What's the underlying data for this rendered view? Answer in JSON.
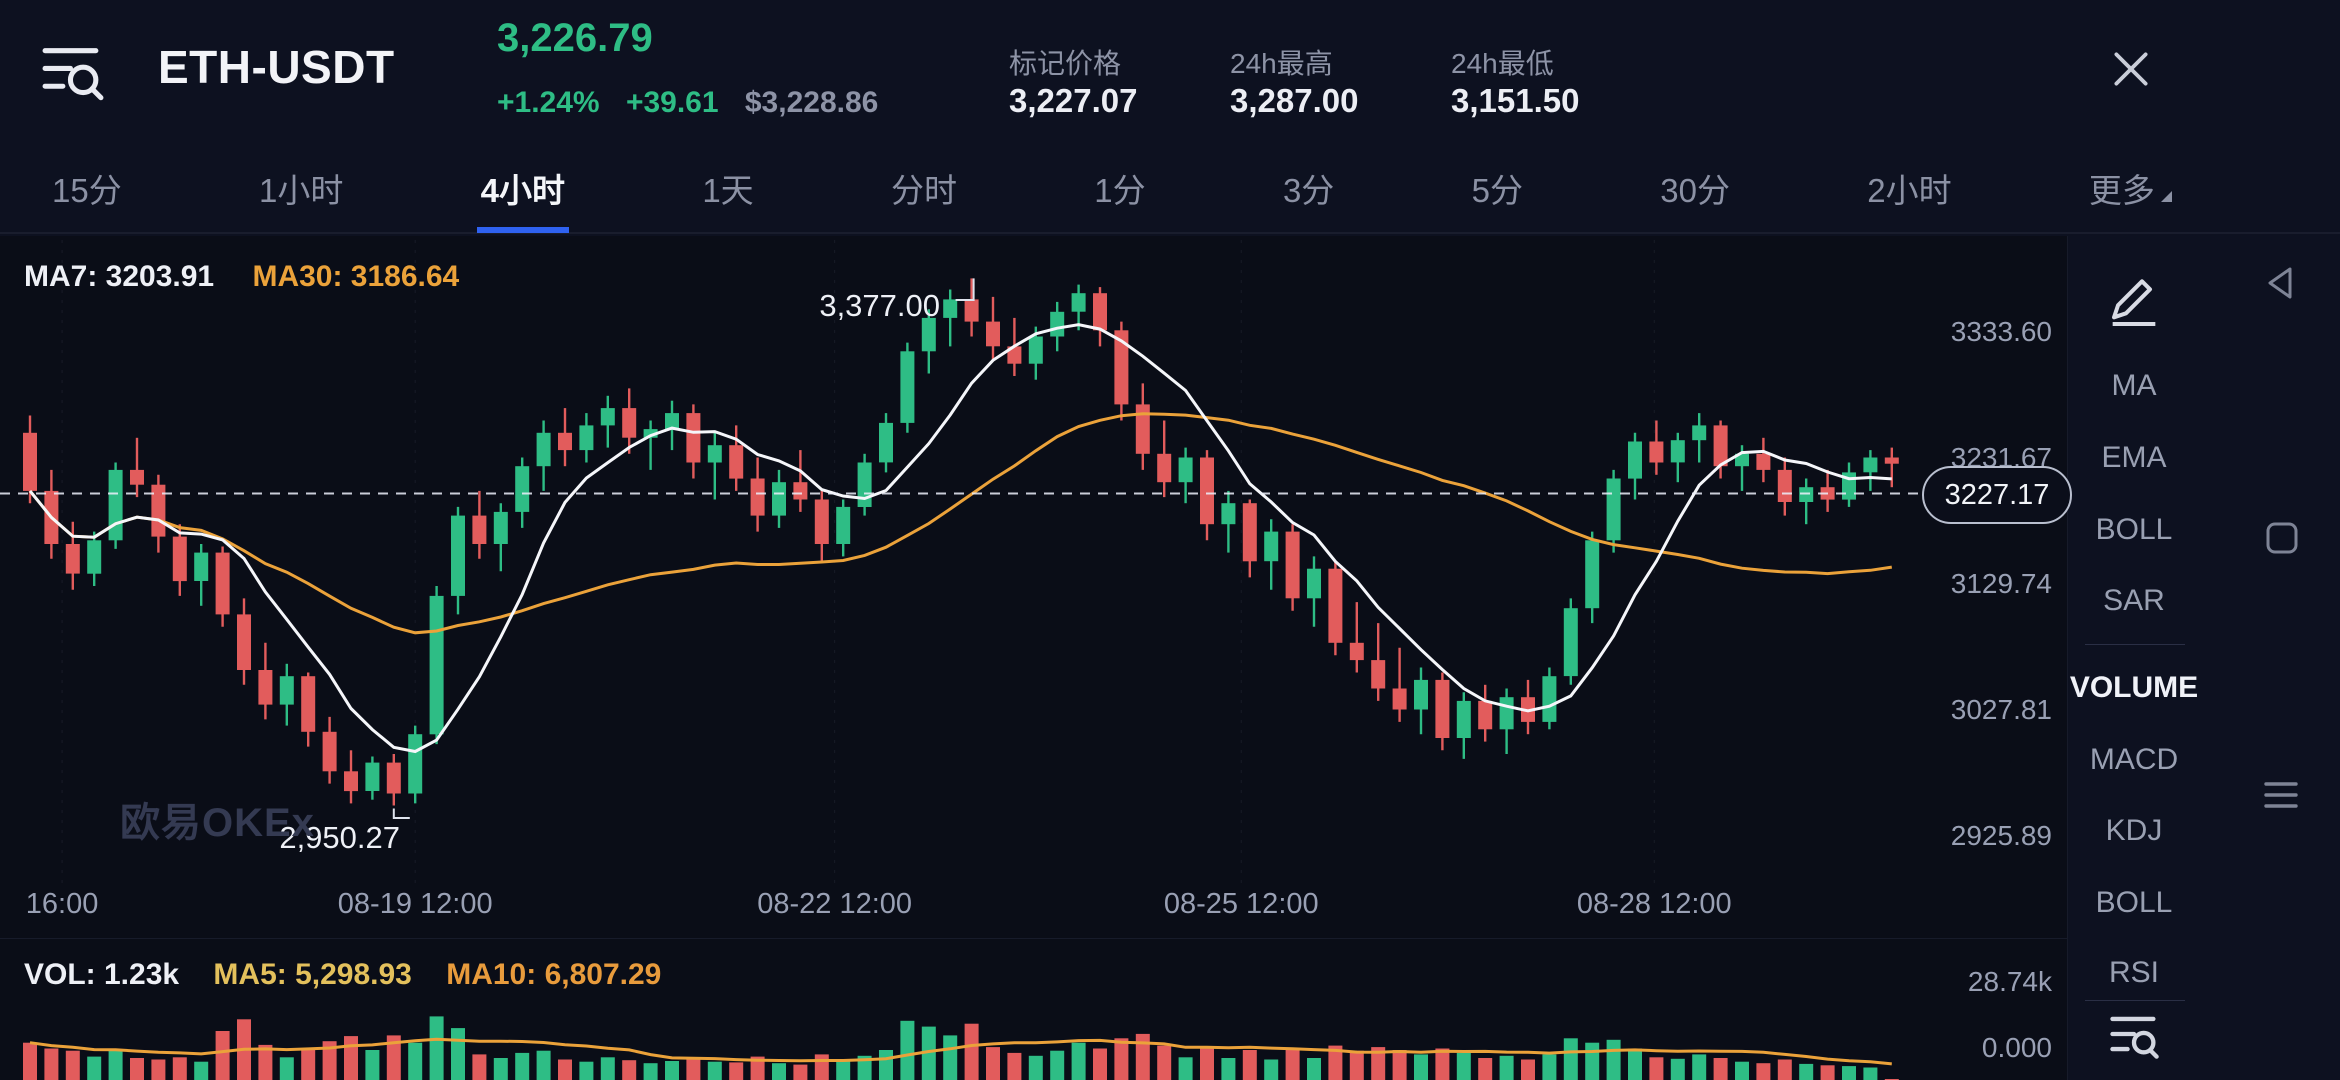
{
  "header": {
    "symbol": "ETH-USDT",
    "last_price": "3,226.79",
    "change_pct": "+1.24%",
    "change_abs": "+39.61",
    "fiat_price": "$3,228.86",
    "stats": [
      {
        "label": "标记价格",
        "value": "3,227.07"
      },
      {
        "label": "24h最高",
        "value": "3,287.00"
      },
      {
        "label": "24h最低",
        "value": "3,151.50"
      }
    ]
  },
  "timeframes": {
    "items": [
      {
        "label": "15分",
        "active": false
      },
      {
        "label": "1小时",
        "active": false
      },
      {
        "label": "4小时",
        "active": true
      },
      {
        "label": "1天",
        "active": false
      },
      {
        "label": "分时",
        "active": false
      },
      {
        "label": "1分",
        "active": false
      },
      {
        "label": "3分",
        "active": false
      },
      {
        "label": "5分",
        "active": false
      },
      {
        "label": "30分",
        "active": false
      },
      {
        "label": "2小时",
        "active": false
      },
      {
        "label": "更多",
        "active": false,
        "caret": true
      }
    ]
  },
  "chart": {
    "ma7_label": "MA7: 3203.91",
    "ma30_label": "MA30: 3186.64",
    "watermark": "欧易OKEx",
    "current_price": {
      "text": "3227.17",
      "price": 3227.17
    },
    "y_axis": [
      {
        "text": "3333.60",
        "price": 3333.6
      },
      {
        "text": "3231.67",
        "price": 3231.67
      },
      {
        "text": "3129.74",
        "price": 3129.74
      },
      {
        "text": "3027.81",
        "price": 3027.81
      },
      {
        "text": "2925.89",
        "price": 2925.89
      }
    ],
    "x_axis": [
      "16:00",
      "08-19 12:00",
      "08-22 12:00",
      "08-25 12:00",
      "08-28 12:00"
    ],
    "annotations": {
      "high": {
        "text": "3,377.00",
        "price": 3377.0,
        "candle_index": 44
      },
      "low": {
        "text": "2,950.27",
        "price": 2950.27,
        "candle_index": 17
      }
    }
  },
  "volume_pane": {
    "vol_label": "VOL: 1.23k",
    "ma5_label": "MA5: 5,298.93",
    "ma10_label": "MA10: 6,807.29",
    "y_axis_top": "28.74k",
    "y_axis_bottom": "0.000",
    "max": 28740
  },
  "indicator_panel": {
    "overlays": [
      "MA",
      "EMA",
      "BOLL",
      "SAR"
    ],
    "subs": [
      "VOLUME",
      "MACD",
      "KDJ",
      "BOLL",
      "RSI"
    ],
    "active_sub": "VOLUME"
  },
  "colors": {
    "up": "#2ebd85",
    "down": "#e25c5c",
    "ma_fast": "#f5f6fa",
    "ma_slow": "#eba23a",
    "accent": "#2f62f0"
  },
  "chart_data": {
    "type": "candlestick",
    "columns": [
      "open",
      "high",
      "low",
      "close",
      "volume"
    ],
    "x_label_anchors": [
      1.5,
      18,
      37.6,
      56.6,
      75.9
    ],
    "price_axis": {
      "visible_min": 2925.89,
      "visible_max": 3333.6
    },
    "candles": [
      [
        3252,
        3266,
        3195,
        3205,
        6200
      ],
      [
        3205,
        3222,
        3150,
        3162,
        5400
      ],
      [
        3162,
        3180,
        3125,
        3138,
        5100
      ],
      [
        3138,
        3172,
        3128,
        3165,
        4300
      ],
      [
        3165,
        3228,
        3158,
        3222,
        5200
      ],
      [
        3222,
        3248,
        3200,
        3210,
        4100
      ],
      [
        3210,
        3218,
        3155,
        3168,
        3900
      ],
      [
        3168,
        3178,
        3120,
        3132,
        4200
      ],
      [
        3132,
        3162,
        3112,
        3155,
        3600
      ],
      [
        3155,
        3160,
        3095,
        3105,
        7800
      ],
      [
        3105,
        3118,
        3048,
        3060,
        9400
      ],
      [
        3060,
        3082,
        3020,
        3032,
        5900
      ],
      [
        3032,
        3065,
        3015,
        3055,
        4200
      ],
      [
        3055,
        3058,
        2998,
        3010,
        5200
      ],
      [
        3010,
        3022,
        2968,
        2978,
        6400
      ],
      [
        2978,
        2995,
        2952,
        2962,
        7100
      ],
      [
        2962,
        2990,
        2955,
        2985,
        5200
      ],
      [
        2985,
        2992,
        2950.27,
        2960,
        7200
      ],
      [
        2960,
        3015,
        2952,
        3008,
        6200
      ],
      [
        3008,
        3128,
        3000,
        3120,
        9800
      ],
      [
        3120,
        3192,
        3105,
        3185,
        8200
      ],
      [
        3185,
        3205,
        3150,
        3162,
        4600
      ],
      [
        3162,
        3195,
        3140,
        3188,
        4100
      ],
      [
        3188,
        3232,
        3175,
        3225,
        4800
      ],
      [
        3225,
        3262,
        3205,
        3252,
        5100
      ],
      [
        3252,
        3272,
        3225,
        3238,
        3900
      ],
      [
        3238,
        3268,
        3228,
        3258,
        3600
      ],
      [
        3258,
        3282,
        3240,
        3272,
        4200
      ],
      [
        3272,
        3288,
        3235,
        3248,
        3800
      ],
      [
        3248,
        3262,
        3222,
        3255,
        3400
      ],
      [
        3255,
        3278,
        3238,
        3268,
        3700
      ],
      [
        3268,
        3275,
        3215,
        3228,
        4100
      ],
      [
        3228,
        3252,
        3198,
        3242,
        3600
      ],
      [
        3242,
        3258,
        3205,
        3215,
        3500
      ],
      [
        3215,
        3232,
        3172,
        3185,
        4300
      ],
      [
        3185,
        3222,
        3175,
        3212,
        3400
      ],
      [
        3212,
        3238,
        3188,
        3198,
        3200
      ],
      [
        3198,
        3205,
        3148,
        3162,
        4600
      ],
      [
        3162,
        3198,
        3152,
        3192,
        3800
      ],
      [
        3192,
        3235,
        3185,
        3228,
        4400
      ],
      [
        3228,
        3268,
        3220,
        3260,
        5200
      ],
      [
        3260,
        3325,
        3252,
        3318,
        9200
      ],
      [
        3318,
        3352,
        3300,
        3345,
        8400
      ],
      [
        3345,
        3368,
        3322,
        3360,
        7200
      ],
      [
        3360,
        3377,
        3330,
        3342,
        8800
      ],
      [
        3342,
        3362,
        3310,
        3322,
        5600
      ],
      [
        3322,
        3345,
        3298,
        3308,
        4800
      ],
      [
        3308,
        3338,
        3295,
        3330,
        4400
      ],
      [
        3330,
        3358,
        3318,
        3350,
        5100
      ],
      [
        3350,
        3372,
        3335,
        3365,
        6200
      ],
      [
        3365,
        3370,
        3322,
        3335,
        5400
      ],
      [
        3335,
        3342,
        3262,
        3275,
        6800
      ],
      [
        3275,
        3292,
        3222,
        3235,
        7400
      ],
      [
        3235,
        3262,
        3200,
        3212,
        5800
      ],
      [
        3212,
        3240,
        3195,
        3232,
        4200
      ],
      [
        3232,
        3238,
        3165,
        3178,
        5600
      ],
      [
        3178,
        3205,
        3155,
        3195,
        4100
      ],
      [
        3195,
        3198,
        3135,
        3148,
        5200
      ],
      [
        3148,
        3182,
        3125,
        3172,
        3900
      ],
      [
        3172,
        3178,
        3108,
        3118,
        5400
      ],
      [
        3118,
        3152,
        3095,
        3142,
        4100
      ],
      [
        3142,
        3148,
        3072,
        3082,
        5800
      ],
      [
        3082,
        3115,
        3058,
        3068,
        5100
      ],
      [
        3068,
        3098,
        3035,
        3045,
        5600
      ],
      [
        3045,
        3078,
        3018,
        3028,
        5200
      ],
      [
        3028,
        3062,
        3008,
        3052,
        4600
      ],
      [
        3052,
        3058,
        2995,
        3005,
        5400
      ],
      [
        3005,
        3042,
        2988,
        3035,
        4800
      ],
      [
        3035,
        3048,
        3002,
        3012,
        4100
      ],
      [
        3012,
        3045,
        2992,
        3038,
        4400
      ],
      [
        3038,
        3052,
        3008,
        3018,
        3900
      ],
      [
        3018,
        3062,
        3012,
        3055,
        4600
      ],
      [
        3055,
        3118,
        3048,
        3110,
        6800
      ],
      [
        3110,
        3172,
        3098,
        3165,
        6200
      ],
      [
        3165,
        3222,
        3155,
        3215,
        6600
      ],
      [
        3215,
        3252,
        3198,
        3245,
        5400
      ],
      [
        3245,
        3262,
        3218,
        3228,
        4200
      ],
      [
        3228,
        3252,
        3212,
        3246,
        4000
      ],
      [
        3246,
        3268,
        3228,
        3258,
        4600
      ],
      [
        3258,
        3262,
        3215,
        3225,
        4100
      ],
      [
        3225,
        3242,
        3205,
        3235,
        3600
      ],
      [
        3235,
        3248,
        3212,
        3222,
        3400
      ],
      [
        3222,
        3232,
        3185,
        3196,
        3900
      ],
      [
        3196,
        3215,
        3178,
        3208,
        3300
      ],
      [
        3208,
        3222,
        3188,
        3198,
        3100
      ],
      [
        3198,
        3228,
        3192,
        3220,
        3000
      ],
      [
        3220,
        3238,
        3205,
        3232,
        2800
      ],
      [
        3232,
        3240,
        3208,
        3227,
        1230
      ]
    ]
  }
}
